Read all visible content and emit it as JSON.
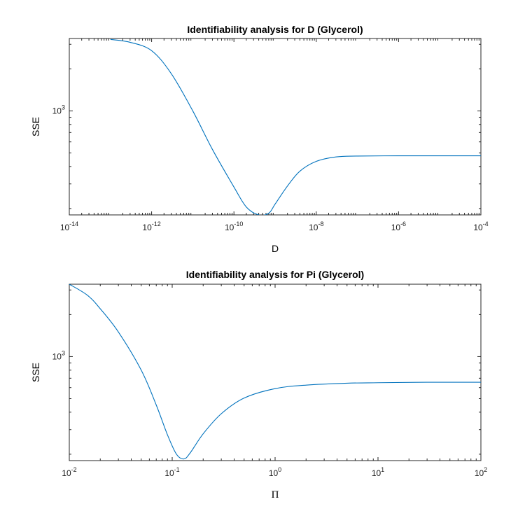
{
  "colors": {
    "series": "#0072BD",
    "axes": "#262626"
  },
  "chart_data": [
    {
      "type": "line",
      "title": "Identifiability analysis for D (Glycerol)",
      "xlabel": "D",
      "ylabel": "SSE",
      "xscale": "log",
      "yscale": "log",
      "xlim": [
        1e-14,
        0.0001
      ],
      "ylim": [
        180,
        3300
      ],
      "x_ticks": [
        {
          "base": "10",
          "exp": "-14",
          "value": 1e-14
        },
        {
          "base": "10",
          "exp": "-12",
          "value": 1e-12
        },
        {
          "base": "10",
          "exp": "-10",
          "value": 1e-10
        },
        {
          "base": "10",
          "exp": "-8",
          "value": 1e-08
        },
        {
          "base": "10",
          "exp": "-6",
          "value": 1e-06
        },
        {
          "base": "10",
          "exp": "-4",
          "value": 0.0001
        }
      ],
      "y_ticks": [
        {
          "base": "10",
          "exp": "3",
          "value": 1000
        }
      ],
      "grid": false,
      "series": [
        {
          "x": [
            1e-13,
            3e-13,
            1e-12,
            3e-12,
            1e-11,
            3e-11,
            1e-10,
            2e-10,
            4e-10,
            7e-10,
            1e-09,
            2e-09,
            4e-09,
            1e-08,
            3e-08,
            1e-07,
            1e-06,
            1e-05,
            0.0001
          ],
          "y": [
            3250,
            3100,
            2700,
            1850,
            1000,
            530,
            285,
            205,
            180,
            185,
            215,
            290,
            370,
            435,
            468,
            475,
            477,
            477,
            477
          ]
        }
      ]
    },
    {
      "type": "line",
      "title": "Identifiability analysis for Pi (Glycerol)",
      "xlabel": "Π",
      "ylabel": "SSE",
      "xscale": "log",
      "yscale": "log",
      "xlim": [
        0.01,
        100
      ],
      "ylim": [
        180,
        3300
      ],
      "x_ticks": [
        {
          "base": "10",
          "exp": "-2",
          "value": 0.01
        },
        {
          "base": "10",
          "exp": "-1",
          "value": 0.1
        },
        {
          "base": "10",
          "exp": "0",
          "value": 1
        },
        {
          "base": "10",
          "exp": "1",
          "value": 10
        },
        {
          "base": "10",
          "exp": "2",
          "value": 100
        }
      ],
      "y_ticks": [
        {
          "base": "10",
          "exp": "3",
          "value": 1000
        }
      ],
      "grid": false,
      "series": [
        {
          "x": [
            0.01,
            0.015,
            0.02,
            0.03,
            0.05,
            0.07,
            0.09,
            0.11,
            0.13,
            0.15,
            0.2,
            0.3,
            0.5,
            1,
            2,
            5,
            10,
            30,
            100
          ],
          "y": [
            3300,
            2750,
            2200,
            1500,
            800,
            450,
            275,
            200,
            185,
            205,
            280,
            390,
            505,
            590,
            625,
            645,
            650,
            655,
            655
          ]
        }
      ]
    }
  ]
}
